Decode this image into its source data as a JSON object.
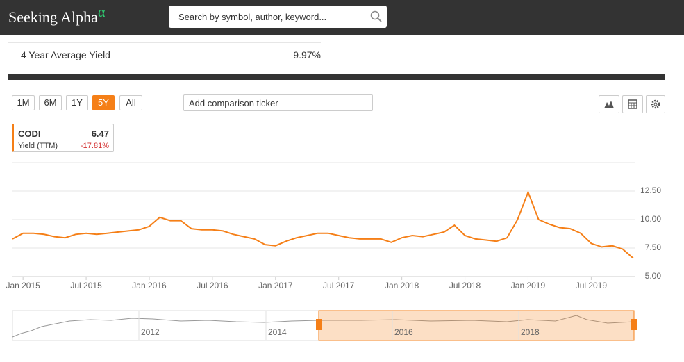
{
  "header": {
    "logo": "Seeking Alpha",
    "logo_mark": "α",
    "search_placeholder": "Search by symbol, author, keyword..."
  },
  "stat": {
    "label": "4 Year Average Yield",
    "value": "9.97%"
  },
  "controls": {
    "ranges": [
      "1M",
      "6M",
      "1Y",
      "5Y",
      "All"
    ],
    "active_range": "5Y",
    "comparison_placeholder": "Add comparison ticker"
  },
  "legend": {
    "ticker": "CODI",
    "price": "6.47",
    "metric": "Yield (TTM)",
    "change": "-17.81%"
  },
  "navigator": {
    "labels": [
      "2012",
      "2014",
      "2016",
      "2018"
    ]
  },
  "chart_data": {
    "type": "line",
    "color": "#f57f17",
    "grid": true,
    "x": [
      "2014-12",
      "2015-01",
      "2015-02",
      "2015-03",
      "2015-04",
      "2015-05",
      "2015-06",
      "2015-07",
      "2015-08",
      "2015-09",
      "2015-10",
      "2015-11",
      "2015-12",
      "2016-01",
      "2016-02",
      "2016-03",
      "2016-04",
      "2016-05",
      "2016-06",
      "2016-07",
      "2016-08",
      "2016-09",
      "2016-10",
      "2016-11",
      "2016-12",
      "2017-01",
      "2017-02",
      "2017-03",
      "2017-04",
      "2017-05",
      "2017-06",
      "2017-07",
      "2017-08",
      "2017-09",
      "2017-10",
      "2017-11",
      "2017-12",
      "2018-01",
      "2018-02",
      "2018-03",
      "2018-04",
      "2018-05",
      "2018-06",
      "2018-07",
      "2018-08",
      "2018-09",
      "2018-10",
      "2018-11",
      "2018-12",
      "2019-01",
      "2019-02",
      "2019-03",
      "2019-04",
      "2019-05",
      "2019-06",
      "2019-07",
      "2019-08",
      "2019-09",
      "2019-10",
      "2019-11"
    ],
    "series": [
      {
        "name": "CODI",
        "values": [
          8.3,
          8.8,
          8.8,
          8.7,
          8.5,
          8.4,
          8.7,
          8.8,
          8.7,
          8.8,
          8.9,
          9.0,
          9.1,
          9.4,
          10.2,
          9.9,
          9.9,
          9.2,
          9.1,
          9.1,
          9.0,
          8.7,
          8.5,
          8.3,
          7.8,
          7.7,
          8.1,
          8.4,
          8.6,
          8.8,
          8.8,
          8.6,
          8.4,
          8.3,
          8.3,
          8.3,
          8.0,
          8.4,
          8.6,
          8.5,
          8.7,
          8.9,
          9.5,
          8.6,
          8.3,
          8.2,
          8.1,
          8.4,
          10.0,
          12.4,
          10.0,
          9.6,
          9.3,
          9.2,
          8.8,
          7.9,
          7.6,
          7.7,
          7.4,
          6.6
        ]
      }
    ],
    "xlim": [
      "2014-12",
      "2019-11"
    ],
    "xticks": [
      {
        "value": "2015-01",
        "label": "Jan 2015"
      },
      {
        "value": "2015-07",
        "label": "Jul 2015"
      },
      {
        "value": "2016-01",
        "label": "Jan 2016"
      },
      {
        "value": "2016-07",
        "label": "Jul 2016"
      },
      {
        "value": "2017-01",
        "label": "Jan 2017"
      },
      {
        "value": "2017-07",
        "label": "Jul 2017"
      },
      {
        "value": "2018-01",
        "label": "Jan 2018"
      },
      {
        "value": "2018-07",
        "label": "Jul 2018"
      },
      {
        "value": "2019-01",
        "label": "Jan 2019"
      },
      {
        "value": "2019-07",
        "label": "Jul 2019"
      }
    ],
    "ylim": [
      5,
      15
    ],
    "yticks": [
      {
        "value": 5,
        "label": "5.00"
      },
      {
        "value": 7.5,
        "label": "7.50"
      },
      {
        "value": 10,
        "label": "10.00"
      },
      {
        "value": 12.5,
        "label": "12.50"
      }
    ]
  }
}
